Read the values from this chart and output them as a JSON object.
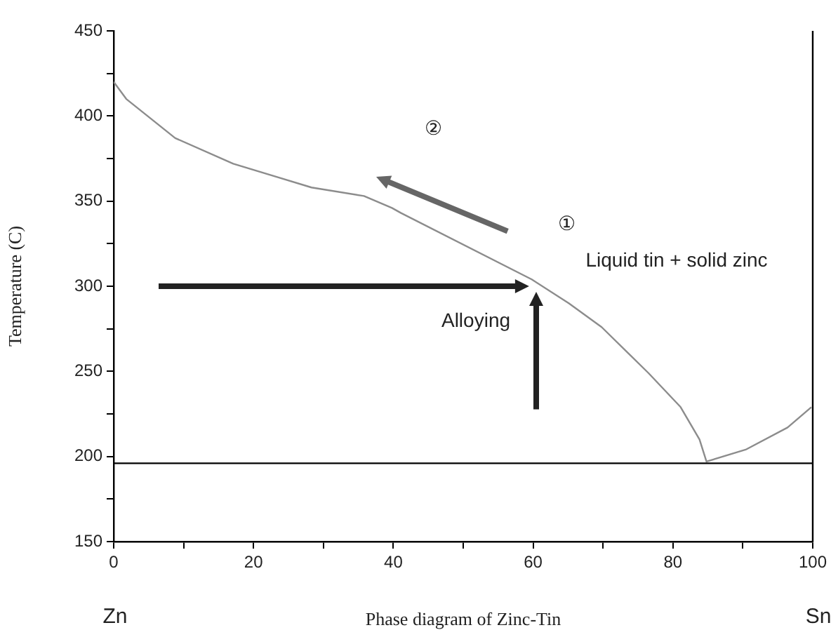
{
  "chart_data": {
    "type": "line",
    "xlabel": "Phase diagram of Zinc-Tin",
    "ylabel": "Temperature (C)",
    "x": [
      0,
      1.8,
      8.8,
      17.1,
      28.3,
      35.8,
      39.8,
      41.1,
      59.8,
      65.1,
      69.8,
      76.5,
      81.1,
      83.8,
      84.8,
      90.4,
      96.4,
      99.8
    ],
    "series": [
      {
        "color": "#8c8c8c",
        "values": [
          420,
          410,
          387,
          372,
          358,
          353,
          346,
          343,
          304,
          290,
          276,
          249,
          229,
          210,
          197,
          204,
          217,
          229
        ]
      }
    ],
    "xlim": [
      0,
      100
    ],
    "xticks": [
      0,
      {
        "value": 10,
        "label": null
      },
      20,
      {
        "value": 30,
        "label": null
      },
      40,
      {
        "value": 50,
        "label": null
      },
      60,
      {
        "value": 70,
        "label": null
      },
      80,
      {
        "value": 90,
        "label": null
      },
      100
    ],
    "ylim": [
      150,
      450
    ],
    "yticks": [
      150,
      {
        "value": 175,
        "label": null
      },
      200,
      {
        "value": 225,
        "label": null
      },
      250,
      {
        "value": 275,
        "label": null
      },
      300,
      {
        "value": 325,
        "label": null
      },
      350,
      {
        "value": 375,
        "label": null
      },
      400,
      {
        "value": 425,
        "label": null
      },
      450
    ],
    "ref_lines": [
      {
        "axis": "y",
        "value": 196,
        "color": "#000000"
      }
    ],
    "annotations": [
      "②",
      "①",
      "Liquid tin + solid zinc",
      "Alloying",
      "Zn",
      "Sn"
    ],
    "grid": false,
    "legend": false,
    "marker": "none",
    "line_style": "solid"
  }
}
